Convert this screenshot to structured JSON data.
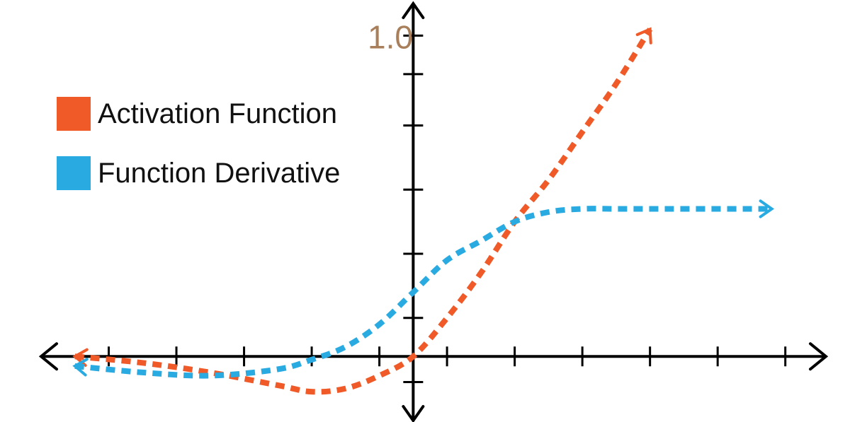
{
  "chart_data": {
    "type": "line",
    "title": "",
    "xlabel": "",
    "ylabel": "",
    "xlim": [
      -5.5,
      6.1
    ],
    "ylim": [
      -0.2,
      1.1
    ],
    "x_ticks": [
      -4.5,
      -3.5,
      -2.5,
      -1.5,
      -0.5,
      0.5,
      1.5,
      2.5,
      3.5,
      4.5,
      5.5
    ],
    "y_ticks": [
      -0.08,
      0.12,
      0.32,
      0.52,
      0.72,
      0.88,
      1.0
    ],
    "y_tick_label": "1.0",
    "grid": false,
    "legend_position": "top-left",
    "series": [
      {
        "name": "Activation Function",
        "color": "#f05a28",
        "x": [
          -5.0,
          -4.0,
          -3.0,
          -2.0,
          -1.5,
          -1.0,
          -0.5,
          0.0,
          0.5,
          1.0,
          1.5,
          2.0,
          2.5,
          3.0,
          3.5
        ],
        "y": [
          0.0,
          -0.02,
          -0.05,
          -0.09,
          -0.11,
          -0.1,
          -0.06,
          0.0,
          0.12,
          0.26,
          0.42,
          0.55,
          0.7,
          0.85,
          1.02
        ]
      },
      {
        "name": "Function Derivative",
        "color": "#29abe2",
        "x": [
          -5.0,
          -4.0,
          -3.0,
          -2.0,
          -1.5,
          -1.0,
          -0.5,
          0.0,
          0.5,
          1.0,
          1.5,
          2.0,
          2.5,
          3.0,
          4.0,
          5.3
        ],
        "y": [
          -0.03,
          -0.05,
          -0.06,
          -0.04,
          -0.01,
          0.03,
          0.1,
          0.2,
          0.3,
          0.36,
          0.42,
          0.45,
          0.46,
          0.46,
          0.46,
          0.46
        ]
      }
    ],
    "colors": {
      "axis": "#000000",
      "tick_label": "#a87f5a"
    }
  }
}
